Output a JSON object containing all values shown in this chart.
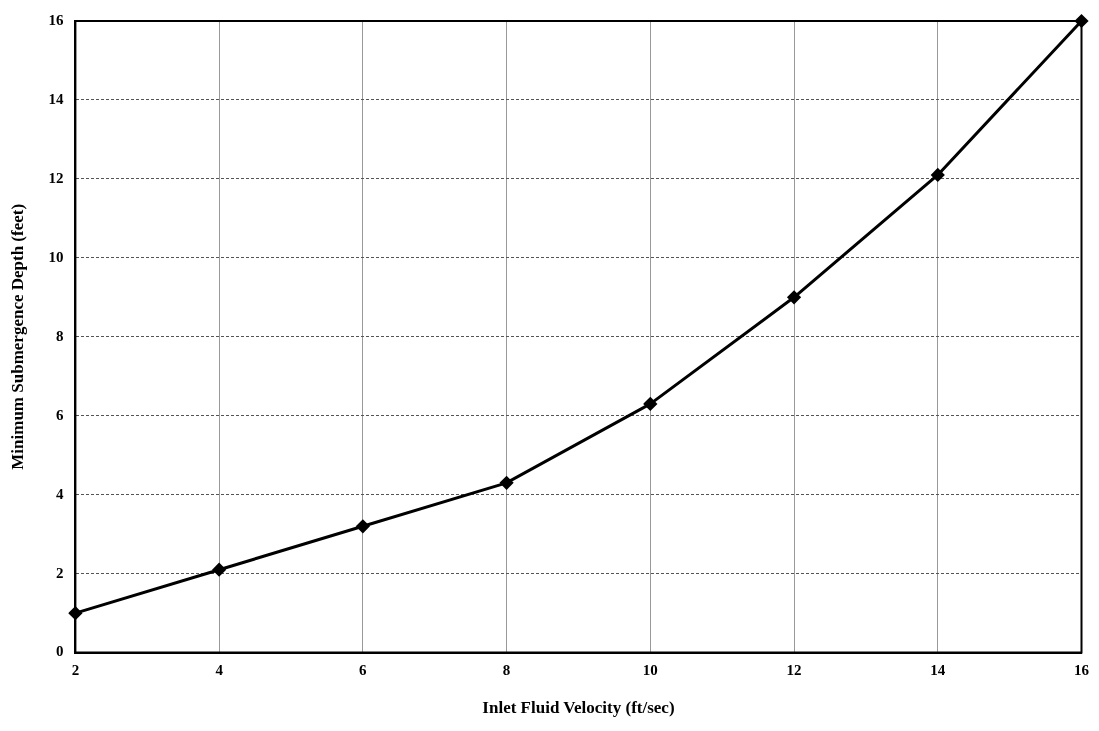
{
  "chart_data": {
    "type": "line",
    "xlabel": "Inlet Fluid Velocity (ft/sec)",
    "ylabel": "Minimum Submergence Depth (feet)",
    "x": [
      2,
      4,
      6,
      8,
      10,
      12,
      14,
      16
    ],
    "series": [
      {
        "color": "#000000",
        "values": [
          1,
          2.1,
          3.2,
          4.3,
          6.3,
          9.0,
          12.1,
          16.0
        ]
      }
    ],
    "xlim": [
      2,
      16
    ],
    "xticks": [
      2,
      4,
      6,
      8,
      10,
      12,
      14,
      16
    ],
    "ylim": [
      0,
      16
    ],
    "yticks": [
      0,
      2,
      4,
      6,
      8,
      10,
      12,
      14,
      16
    ],
    "grid": true,
    "marker": "diamond",
    "line_style": "solid",
    "legend": false
  }
}
